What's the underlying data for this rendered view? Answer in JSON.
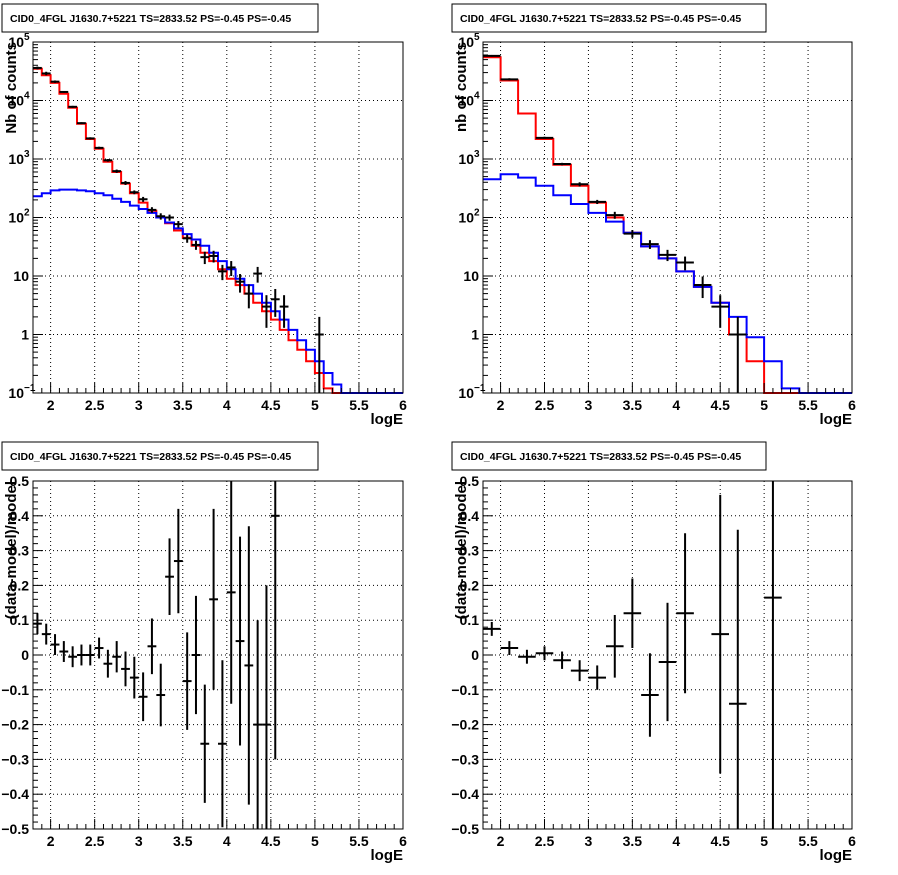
{
  "colors": {
    "data": "#000000",
    "total_model": "#ff0000",
    "source_model": "#0000ff",
    "grid": "#000000"
  },
  "chart_data": [
    {
      "type": "line",
      "title": "CID0_4FGL J1630.7+5221 TS=2833.52 PS=-0.45 PS=-0.45",
      "xlabel": "logE",
      "ylabel": "Nb of counts",
      "xlim": [
        1.8,
        6.0
      ],
      "ylim": [
        0.1,
        100000
      ],
      "log_y": true,
      "grid": true,
      "legend": "none",
      "x_ticks": [
        {
          "v": 2,
          "label": "2"
        },
        {
          "v": 2.5,
          "label": "2.5"
        },
        {
          "v": 3,
          "label": "3"
        },
        {
          "v": 3.5,
          "label": "3.5"
        },
        {
          "v": 4,
          "label": "4"
        },
        {
          "v": 4.5,
          "label": "4.5"
        },
        {
          "v": 5,
          "label": "5"
        },
        {
          "v": 5.5,
          "label": "5.5"
        },
        {
          "v": 6,
          "label": "6"
        }
      ],
      "y_ticks": [
        {
          "v": 0.1,
          "label": "10",
          "exp": "−1"
        },
        {
          "v": 1,
          "label": "1"
        },
        {
          "v": 10,
          "label": "10"
        },
        {
          "v": 100,
          "label": "10",
          "exp": "2"
        },
        {
          "v": 1000,
          "label": "10",
          "exp": "3"
        },
        {
          "v": 10000,
          "label": "10",
          "exp": "4"
        },
        {
          "v": 100000,
          "label": "10",
          "exp": "5"
        }
      ],
      "bin_width": 0.1,
      "series": [
        {
          "role": "total_model",
          "x_start": 1.8,
          "values": [
            35000,
            27000,
            20000,
            13000,
            7500,
            4000,
            2200,
            1500,
            900,
            600,
            380,
            260,
            180,
            130,
            100,
            80,
            60,
            45,
            33,
            25,
            18,
            13,
            9,
            7,
            5,
            3.5,
            2.5,
            1.8,
            1.2,
            0.8,
            0.55,
            0.35,
            0.22,
            0.12,
            0.1,
            0.1,
            0.1,
            0.1,
            0.1,
            0.1,
            0.1,
            0.1
          ]
        },
        {
          "role": "source_model",
          "x_start": 1.8,
          "values": [
            230,
            260,
            290,
            300,
            300,
            290,
            280,
            260,
            240,
            210,
            185,
            160,
            140,
            120,
            100,
            82,
            65,
            52,
            42,
            33,
            25,
            18,
            13,
            9,
            7,
            5,
            3.5,
            2.5,
            1.8,
            1.2,
            0.8,
            0.55,
            0.35,
            0.22,
            0.14,
            0.1,
            0.1,
            0.1,
            0.1,
            0.1,
            0.1,
            0.1
          ]
        },
        {
          "role": "data",
          "points": [
            {
              "x": 1.85,
              "y": 36000,
              "lo": 34000,
              "hi": 38000
            },
            {
              "x": 1.95,
              "y": 29000,
              "lo": 27000,
              "hi": 31000
            },
            {
              "x": 2.05,
              "y": 21000,
              "lo": 20000,
              "hi": 22000
            },
            {
              "x": 2.15,
              "y": 14000,
              "lo": 13500,
              "hi": 14500
            },
            {
              "x": 2.25,
              "y": 7800,
              "lo": 7500,
              "hi": 8100
            },
            {
              "x": 2.35,
              "y": 4100,
              "lo": 3950,
              "hi": 4250
            },
            {
              "x": 2.45,
              "y": 2250,
              "lo": 2150,
              "hi": 2350
            },
            {
              "x": 2.55,
              "y": 1550,
              "lo": 1480,
              "hi": 1620
            },
            {
              "x": 2.65,
              "y": 950,
              "lo": 900,
              "hi": 1000
            },
            {
              "x": 2.75,
              "y": 620,
              "lo": 580,
              "hi": 660
            },
            {
              "x": 2.85,
              "y": 390,
              "lo": 360,
              "hi": 420
            },
            {
              "x": 2.95,
              "y": 270,
              "lo": 250,
              "hi": 290
            },
            {
              "x": 3.05,
              "y": 205,
              "lo": 185,
              "hi": 225
            },
            {
              "x": 3.15,
              "y": 135,
              "lo": 120,
              "hi": 150
            },
            {
              "x": 3.25,
              "y": 105,
              "lo": 92,
              "hi": 118
            },
            {
              "x": 3.35,
              "y": 100,
              "lo": 88,
              "hi": 112
            },
            {
              "x": 3.45,
              "y": 77,
              "lo": 67,
              "hi": 87
            },
            {
              "x": 3.55,
              "y": 44,
              "lo": 37,
              "hi": 51
            },
            {
              "x": 3.65,
              "y": 34,
              "lo": 28,
              "hi": 40
            },
            {
              "x": 3.75,
              "y": 21,
              "lo": 16,
              "hi": 26
            },
            {
              "x": 3.85,
              "y": 22,
              "lo": 17,
              "hi": 27
            },
            {
              "x": 3.95,
              "y": 12,
              "lo": 8.5,
              "hi": 15.5
            },
            {
              "x": 4.05,
              "y": 14,
              "lo": 10,
              "hi": 18
            },
            {
              "x": 4.15,
              "y": 8,
              "lo": 5.2,
              "hi": 10.8
            },
            {
              "x": 4.25,
              "y": 5,
              "lo": 2.8,
              "hi": 7.2
            },
            {
              "x": 4.35,
              "y": 11,
              "lo": 7.7,
              "hi": 14.3
            },
            {
              "x": 4.45,
              "y": 3,
              "lo": 1.3,
              "hi": 4.7
            },
            {
              "x": 4.55,
              "y": 4,
              "lo": 2,
              "hi": 6
            },
            {
              "x": 4.65,
              "y": 3,
              "lo": 1.3,
              "hi": 4.7
            },
            {
              "x": 5.05,
              "y": 1,
              "lo": 0.1,
              "hi": 2
            }
          ]
        }
      ]
    },
    {
      "type": "line",
      "title": "CID0_4FGL J1630.7+5221 TS=2833.52 PS=-0.45 PS=-0.45",
      "xlabel": "logE",
      "ylabel": "nb of counts",
      "xlim": [
        1.8,
        6.0
      ],
      "ylim": [
        0.1,
        100000
      ],
      "log_y": true,
      "grid": true,
      "legend": "none",
      "x_ticks": [
        {
          "v": 2,
          "label": "2"
        },
        {
          "v": 2.5,
          "label": "2.5"
        },
        {
          "v": 3,
          "label": "3"
        },
        {
          "v": 3.5,
          "label": "3.5"
        },
        {
          "v": 4,
          "label": "4"
        },
        {
          "v": 4.5,
          "label": "4.5"
        },
        {
          "v": 5,
          "label": "5"
        },
        {
          "v": 5.5,
          "label": "5.5"
        },
        {
          "v": 6,
          "label": "6"
        }
      ],
      "y_ticks": [
        {
          "v": 0.1,
          "label": "10",
          "exp": "−1"
        },
        {
          "v": 1,
          "label": "1"
        },
        {
          "v": 10,
          "label": "10"
        },
        {
          "v": 100,
          "label": "10",
          "exp": "2"
        },
        {
          "v": 1000,
          "label": "10",
          "exp": "3"
        },
        {
          "v": 10000,
          "label": "10",
          "exp": "4"
        },
        {
          "v": 100000,
          "label": "10",
          "exp": "5"
        }
      ],
      "bin_width": 0.2,
      "series": [
        {
          "role": "total_model",
          "x_start": 1.8,
          "values": [
            55000,
            22000,
            6000,
            2200,
            800,
            350,
            180,
            100,
            55,
            32,
            20,
            12,
            6.5,
            3.5,
            1,
            0.35,
            0.1,
            0.1,
            0.1,
            0.1,
            0.1
          ]
        },
        {
          "role": "source_model",
          "x_start": 1.8,
          "values": [
            450,
            550,
            480,
            350,
            240,
            170,
            120,
            85,
            55,
            32,
            20,
            12,
            6.5,
            3.5,
            2,
            0.9,
            0.35,
            0.12,
            0.1,
            0.1,
            0.1
          ]
        },
        {
          "role": "data",
          "points": [
            {
              "x": 1.9,
              "y": 58000,
              "lo": 56000,
              "hi": 60000
            },
            {
              "x": 2.1,
              "y": 23000,
              "lo": 22000,
              "hi": 24000
            },
            {
              "x": 2.5,
              "y": 2300,
              "lo": 2200,
              "hi": 2400
            },
            {
              "x": 2.7,
              "y": 820,
              "lo": 780,
              "hi": 860
            },
            {
              "x": 2.9,
              "y": 370,
              "lo": 340,
              "hi": 400
            },
            {
              "x": 3.1,
              "y": 185,
              "lo": 170,
              "hi": 200
            },
            {
              "x": 3.3,
              "y": 110,
              "lo": 95,
              "hi": 125
            },
            {
              "x": 3.5,
              "y": 53,
              "lo": 45,
              "hi": 61
            },
            {
              "x": 3.7,
              "y": 35,
              "lo": 29,
              "hi": 41
            },
            {
              "x": 3.9,
              "y": 23,
              "lo": 18,
              "hi": 28
            },
            {
              "x": 4.1,
              "y": 17,
              "lo": 12.5,
              "hi": 21.5
            },
            {
              "x": 4.3,
              "y": 7,
              "lo": 4.2,
              "hi": 9.8
            },
            {
              "x": 4.5,
              "y": 3,
              "lo": 1.3,
              "hi": 4.7
            },
            {
              "x": 4.7,
              "y": 1,
              "lo": 0.1,
              "hi": 2
            }
          ]
        }
      ]
    },
    {
      "type": "scatter",
      "title": "CID0_4FGL J1630.7+5221 TS=2833.52 PS=-0.45 PS=-0.45",
      "xlabel": "logE",
      "ylabel": "(data-model)/model",
      "xlim": [
        1.8,
        6.0
      ],
      "ylim": [
        -0.5,
        0.5
      ],
      "grid": true,
      "legend": "none",
      "x_ticks": [
        {
          "v": 2,
          "label": "2"
        },
        {
          "v": 2.5,
          "label": "2.5"
        },
        {
          "v": 3,
          "label": "3"
        },
        {
          "v": 3.5,
          "label": "3.5"
        },
        {
          "v": 4,
          "label": "4"
        },
        {
          "v": 4.5,
          "label": "4.5"
        },
        {
          "v": 5,
          "label": "5"
        },
        {
          "v": 5.5,
          "label": "5.5"
        },
        {
          "v": 6,
          "label": "6"
        }
      ],
      "y_ticks": [
        {
          "v": -0.5,
          "label": "−0.5"
        },
        {
          "v": -0.4,
          "label": "−0.4"
        },
        {
          "v": -0.3,
          "label": "−0.3"
        },
        {
          "v": -0.2,
          "label": "−0.2"
        },
        {
          "v": -0.1,
          "label": "−0.1"
        },
        {
          "v": 0,
          "label": "0"
        },
        {
          "v": 0.1,
          "label": "0.1"
        },
        {
          "v": 0.2,
          "label": "0.2"
        },
        {
          "v": 0.3,
          "label": "0.3"
        },
        {
          "v": 0.4,
          "label": "0.4"
        },
        {
          "v": 0.5,
          "label": "0.5"
        }
      ],
      "x_halfwidth": 0.05,
      "series": [
        {
          "role": "data",
          "points": [
            {
              "x": 1.85,
              "y": 0.09,
              "err": 0.03
            },
            {
              "x": 1.95,
              "y": 0.06,
              "err": 0.03
            },
            {
              "x": 2.05,
              "y": 0.03,
              "err": 0.03
            },
            {
              "x": 2.15,
              "y": 0.01,
              "err": 0.03
            },
            {
              "x": 2.25,
              "y": -0.005,
              "err": 0.03
            },
            {
              "x": 2.35,
              "y": 0.0,
              "err": 0.03
            },
            {
              "x": 2.45,
              "y": 0.0,
              "err": 0.03
            },
            {
              "x": 2.55,
              "y": 0.02,
              "err": 0.03
            },
            {
              "x": 2.65,
              "y": -0.025,
              "err": 0.04
            },
            {
              "x": 2.75,
              "y": -0.005,
              "err": 0.045
            },
            {
              "x": 2.85,
              "y": -0.04,
              "err": 0.05
            },
            {
              "x": 2.95,
              "y": -0.065,
              "err": 0.06
            },
            {
              "x": 3.05,
              "y": -0.12,
              "err": 0.07
            },
            {
              "x": 3.15,
              "y": 0.025,
              "err": 0.08
            },
            {
              "x": 3.25,
              "y": -0.115,
              "err": 0.09
            },
            {
              "x": 3.35,
              "y": 0.225,
              "err": 0.11
            },
            {
              "x": 3.45,
              "y": 0.27,
              "err": 0.15
            },
            {
              "x": 3.55,
              "y": -0.075,
              "err": 0.14
            },
            {
              "x": 3.65,
              "y": 0.0,
              "err": 0.17
            },
            {
              "x": 3.75,
              "y": -0.255,
              "err": 0.17
            },
            {
              "x": 3.85,
              "y": 0.16,
              "err": 0.26
            },
            {
              "x": 3.95,
              "y": -0.255,
              "err": 0.24
            },
            {
              "x": 4.05,
              "y": 0.18,
              "err": 0.32
            },
            {
              "x": 4.15,
              "y": 0.04,
              "err": 0.3
            },
            {
              "x": 4.25,
              "y": -0.03,
              "err": 0.4
            },
            {
              "x": 4.35,
              "y": -0.2,
              "err": 0.3
            },
            {
              "x": 4.45,
              "y": -0.2,
              "err": 0.4
            },
            {
              "x": 4.55,
              "y": 0.4,
              "err": 0.7
            }
          ]
        }
      ]
    },
    {
      "type": "scatter",
      "title": "CID0_4FGL J1630.7+5221 TS=2833.52 PS=-0.45 PS=-0.45",
      "xlabel": "logE",
      "ylabel": "(data-model)/model",
      "xlim": [
        1.8,
        6.0
      ],
      "ylim": [
        -0.5,
        0.5
      ],
      "grid": true,
      "legend": "none",
      "x_ticks": [
        {
          "v": 2,
          "label": "2"
        },
        {
          "v": 2.5,
          "label": "2.5"
        },
        {
          "v": 3,
          "label": "3"
        },
        {
          "v": 3.5,
          "label": "3.5"
        },
        {
          "v": 4,
          "label": "4"
        },
        {
          "v": 4.5,
          "label": "4.5"
        },
        {
          "v": 5,
          "label": "5"
        },
        {
          "v": 5.5,
          "label": "5.5"
        },
        {
          "v": 6,
          "label": "6"
        }
      ],
      "y_ticks": [
        {
          "v": -0.5,
          "label": "−0.5"
        },
        {
          "v": -0.4,
          "label": "−0.4"
        },
        {
          "v": -0.3,
          "label": "−0.3"
        },
        {
          "v": -0.2,
          "label": "−0.2"
        },
        {
          "v": -0.1,
          "label": "−0.1"
        },
        {
          "v": 0,
          "label": "0"
        },
        {
          "v": 0.1,
          "label": "0.1"
        },
        {
          "v": 0.2,
          "label": "0.2"
        },
        {
          "v": 0.3,
          "label": "0.3"
        },
        {
          "v": 0.4,
          "label": "0.4"
        },
        {
          "v": 0.5,
          "label": "0.5"
        }
      ],
      "x_halfwidth": 0.1,
      "series": [
        {
          "role": "data",
          "points": [
            {
              "x": 1.9,
              "y": 0.075,
              "err": 0.02
            },
            {
              "x": 2.1,
              "y": 0.02,
              "err": 0.02
            },
            {
              "x": 2.3,
              "y": -0.005,
              "err": 0.02
            },
            {
              "x": 2.5,
              "y": 0.005,
              "err": 0.02
            },
            {
              "x": 2.7,
              "y": -0.015,
              "err": 0.025
            },
            {
              "x": 2.9,
              "y": -0.045,
              "err": 0.03
            },
            {
              "x": 3.1,
              "y": -0.065,
              "err": 0.035
            },
            {
              "x": 3.3,
              "y": 0.025,
              "err": 0.09
            },
            {
              "x": 3.5,
              "y": 0.12,
              "err": 0.1
            },
            {
              "x": 3.7,
              "y": -0.115,
              "err": 0.12
            },
            {
              "x": 3.9,
              "y": -0.02,
              "err": 0.17
            },
            {
              "x": 4.1,
              "y": 0.12,
              "err": 0.23
            },
            {
              "x": 4.5,
              "y": 0.06,
              "err": 0.4
            },
            {
              "x": 4.7,
              "y": -0.14,
              "err": 0.5
            },
            {
              "x": 5.1,
              "y": 0.165,
              "err": 0.7
            }
          ]
        }
      ]
    }
  ]
}
